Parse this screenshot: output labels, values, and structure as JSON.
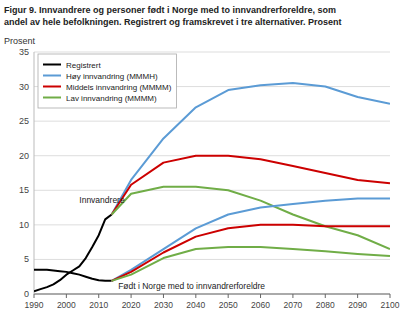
{
  "chart_data": {
    "type": "line",
    "title": "Figur 9. Innvandrere og personer født i Norge med to innvandrerforeldre, som",
    "subtitle": "andel av hele befolkningen. Registrert og framskrevet i tre alternativer. Prosent",
    "y_label": "Prosent",
    "xlim": [
      1990,
      2100
    ],
    "ylim": [
      0,
      35
    ],
    "xticks": [
      1990,
      2000,
      2010,
      2020,
      2030,
      2040,
      2050,
      2060,
      2070,
      2080,
      2090,
      2100
    ],
    "yticks": [
      0,
      5,
      10,
      15,
      20,
      25,
      30,
      35
    ],
    "grid": "y",
    "legend": "upper left",
    "annotations": [
      {
        "x": 2004,
        "y": 12.8,
        "text": "Innvandrere"
      },
      {
        "x": 2016,
        "y": 0.5,
        "text": "Født i Norge med to innvandrerforeldre"
      }
    ],
    "series": [
      {
        "name": "Registrert",
        "color": "#000000",
        "x": [
          1990,
          1992,
          1994,
          1996,
          1998,
          2000,
          2002,
          2004,
          2006,
          2008,
          2010,
          2012,
          2014
        ],
        "values": [
          0.4,
          0.7,
          1.0,
          1.4,
          2.0,
          2.8,
          3.4,
          4.0,
          5.2,
          6.8,
          8.5,
          10.8,
          11.5
        ]
      },
      {
        "name": "Registrert",
        "color": "#000000",
        "x": [
          1990,
          1992,
          1994,
          1996,
          1998,
          2000,
          2002,
          2004,
          2006,
          2008,
          2010,
          2012,
          2014
        ],
        "values": [
          3.5,
          3.5,
          3.5,
          3.4,
          3.3,
          3.2,
          3.0,
          2.8,
          2.5,
          2.2,
          2.0,
          1.9,
          1.9
        ]
      },
      {
        "name": "Høy innvandring (MMMH)",
        "color": "#5b9bd5",
        "x": [
          2014,
          2020,
          2030,
          2040,
          2050,
          2060,
          2070,
          2080,
          2090,
          2100
        ],
        "values": [
          11.5,
          16.5,
          22.5,
          27.0,
          29.5,
          30.2,
          30.5,
          30.0,
          28.5,
          27.5
        ]
      },
      {
        "name": "Middels innvandring (MMMM)",
        "color": "#cc0000",
        "x": [
          2014,
          2020,
          2030,
          2040,
          2050,
          2060,
          2070,
          2080,
          2090,
          2100
        ],
        "values": [
          11.5,
          15.8,
          19.0,
          20.0,
          20.0,
          19.5,
          18.5,
          17.5,
          16.5,
          16.0
        ]
      },
      {
        "name": "Lav innvandring (MMMM)",
        "color": "#70ad47",
        "x": [
          2014,
          2020,
          2030,
          2040,
          2050,
          2060,
          2070,
          2080,
          2090,
          2100
        ],
        "values": [
          11.5,
          14.5,
          15.5,
          15.5,
          15.0,
          13.5,
          11.5,
          9.8,
          8.5,
          6.5
        ]
      },
      {
        "name": "Høy innvandring (MMMH)",
        "color": "#5b9bd5",
        "x": [
          2014,
          2020,
          2030,
          2040,
          2050,
          2060,
          2070,
          2080,
          2090,
          2100
        ],
        "values": [
          1.9,
          3.5,
          6.5,
          9.5,
          11.5,
          12.5,
          13.0,
          13.5,
          13.8,
          13.8
        ]
      },
      {
        "name": "Middels innvandring (MMMM)",
        "color": "#cc0000",
        "x": [
          2014,
          2020,
          2030,
          2040,
          2050,
          2060,
          2070,
          2080,
          2090,
          2100
        ],
        "values": [
          1.9,
          3.2,
          6.0,
          8.3,
          9.5,
          10.0,
          10.0,
          9.8,
          9.8,
          9.8
        ]
      },
      {
        "name": "Lav innvandring (MMMM)",
        "color": "#70ad47",
        "x": [
          2014,
          2020,
          2030,
          2040,
          2050,
          2060,
          2070,
          2080,
          2090,
          2100
        ],
        "values": [
          1.9,
          2.8,
          5.2,
          6.5,
          6.8,
          6.8,
          6.5,
          6.2,
          5.8,
          5.5
        ]
      }
    ]
  }
}
